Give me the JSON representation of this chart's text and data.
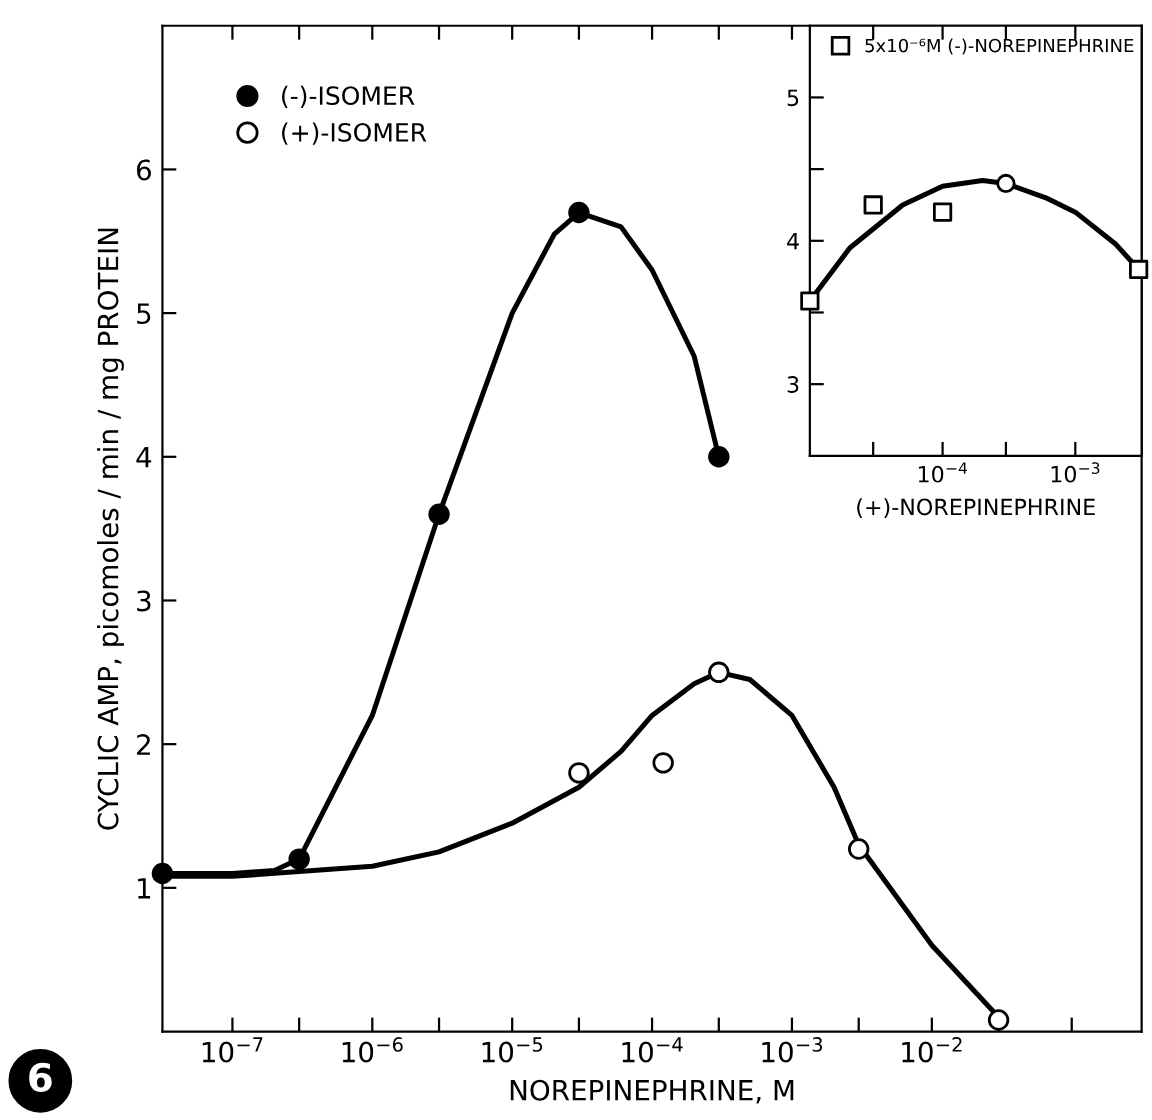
{
  "chart_data": [
    {
      "type": "scatter",
      "xlabel": "NOREPINEPHRINE, M",
      "ylabel": "CYCLIC AMP, picomoles / min / mg PROTEIN",
      "log": "x",
      "legend": "top left",
      "grid": false,
      "xlim": [
        3.16e-08,
        0.316
      ],
      "ylim": [
        0,
        7
      ],
      "xticks": [
        {
          "value": 1e-07,
          "label": "10$^{−7}$"
        },
        {
          "value": 3e-07,
          "label": null
        },
        {
          "value": 1e-06,
          "label": "10$^{−6}$"
        },
        {
          "value": 3e-06,
          "label": null
        },
        {
          "value": 1e-05,
          "label": "10$^{−5}$"
        },
        {
          "value": 3e-05,
          "label": null
        },
        {
          "value": 0.0001,
          "label": "10$^{−4}$"
        },
        {
          "value": 0.0003,
          "label": null
        },
        {
          "value": 0.001,
          "label": "10$^{−3}$"
        },
        {
          "value": 0.003,
          "label": null
        },
        {
          "value": 0.01,
          "label": "10$^{−2}$"
        },
        {
          "value": 0.03,
          "label": null
        },
        {
          "value": 0.1,
          "label": null
        }
      ],
      "yticks": [
        1,
        2,
        3,
        4,
        5,
        6
      ],
      "annotations": [
        "6"
      ],
      "series": [
        {
          "type": "line",
          "color": "#000000",
          "line_style": "solid",
          "marker": "none",
          "x": [
            3.16e-08,
            1e-07,
            2e-07,
            3e-07,
            1e-06,
            3e-06,
            1e-05,
            2e-05,
            3e-05,
            6e-05,
            0.0001,
            0.0002,
            0.0003
          ],
          "values": [
            1.1,
            1.1,
            1.12,
            1.2,
            2.2,
            3.6,
            5.0,
            5.55,
            5.7,
            5.6,
            5.3,
            4.7,
            4.0
          ]
        },
        {
          "type": "line",
          "color": "#000000",
          "line_style": "solid",
          "marker": "none",
          "x": [
            3.16e-08,
            1e-07,
            1e-06,
            3e-06,
            1e-05,
            3e-05,
            6e-05,
            0.0001,
            0.0002,
            0.0003,
            0.0005,
            0.001,
            0.002,
            0.003,
            0.01,
            0.03
          ],
          "values": [
            1.08,
            1.08,
            1.15,
            1.25,
            1.45,
            1.7,
            1.95,
            2.2,
            2.42,
            2.5,
            2.45,
            2.2,
            1.7,
            1.3,
            0.6,
            0.1
          ]
        },
        {
          "name": "(-)-ISOMER",
          "color": "#000000",
          "marker": "circle",
          "x": [
            3.16e-08,
            3e-07,
            3e-06,
            3e-05,
            0.0003
          ],
          "values": [
            1.1,
            1.2,
            3.6,
            5.7,
            4.0
          ]
        },
        {
          "name": "(+)-ISOMER",
          "color": "#ffffff",
          "marker": "circle",
          "x": [
            3e-05,
            0.00012,
            0.0003,
            0.003,
            0.03
          ],
          "values": [
            1.8,
            1.87,
            2.5,
            1.27,
            0.08
          ]
        }
      ]
    },
    {
      "type": "scatter",
      "xlabel": "(+)-NOREPINEPHRINE",
      "log": "x",
      "legend": "top left",
      "grid": false,
      "xlim": [
        1e-05,
        0.00316
      ],
      "ylim": [
        2.5,
        5.5
      ],
      "xticks": [
        {
          "value": 3e-05,
          "label": null
        },
        {
          "value": 0.0001,
          "label": "10$^{−4}$"
        },
        {
          "value": 0.0003,
          "label": null
        },
        {
          "value": 0.001,
          "label": "10$^{−3}$"
        }
      ],
      "yticks": [
        3,
        {
          "value": 3.5,
          "label": null
        },
        4,
        {
          "value": 4.5,
          "label": null
        },
        5
      ],
      "series": [
        {
          "type": "line",
          "color": "#000000",
          "line_style": "solid",
          "marker": "none",
          "x": [
            1e-05,
            2e-05,
            5e-05,
            0.0001,
            0.0002,
            0.0003,
            0.0006,
            0.001,
            0.002,
            0.003
          ],
          "values": [
            3.58,
            3.95,
            4.25,
            4.38,
            4.42,
            4.4,
            4.3,
            4.2,
            3.98,
            3.8
          ]
        },
        {
          "name": "5x10⁻⁶M (-)-NOREPINEPHRINE",
          "color": "#ffffff",
          "marker": "square",
          "x": [
            1e-05,
            3e-05,
            0.0001,
            0.003
          ],
          "values": [
            3.58,
            4.25,
            4.2,
            3.8
          ]
        },
        {
          "color": "#ffffff",
          "marker": "circle",
          "x": [
            0.0003
          ],
          "values": [
            4.4
          ]
        }
      ]
    }
  ]
}
